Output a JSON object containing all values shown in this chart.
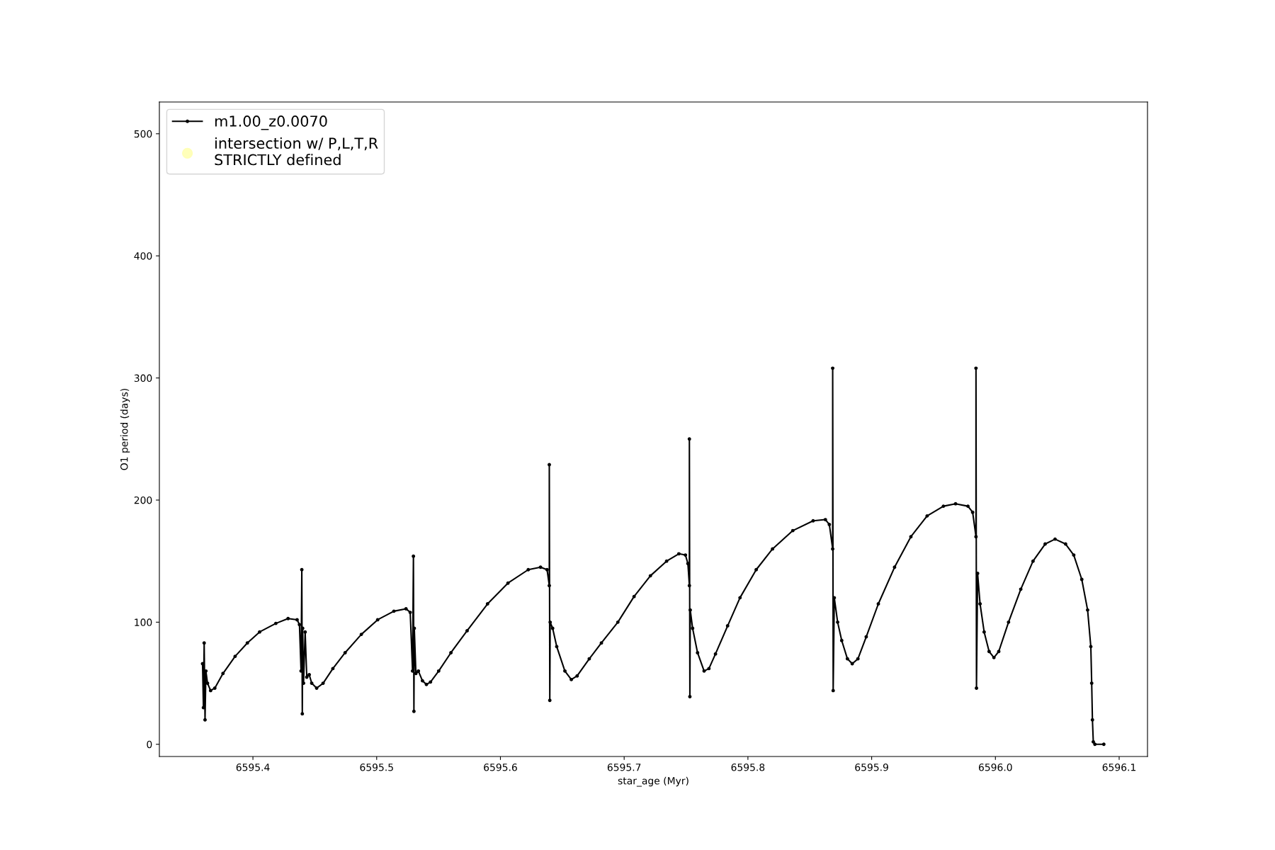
{
  "chart_data": {
    "type": "line",
    "xlabel": "star_age (Myr)",
    "ylabel": "O1 period (days)",
    "xlim": [
      6595.3244,
      6596.1229
    ],
    "ylim": [
      -10,
      526
    ],
    "xticks": [
      {
        "value": 6595.4,
        "label": "6595.4"
      },
      {
        "value": 6595.5,
        "label": "6595.5"
      },
      {
        "value": 6595.6,
        "label": "6595.6"
      },
      {
        "value": 6595.7,
        "label": "6595.7"
      },
      {
        "value": 6595.8,
        "label": "6595.8"
      },
      {
        "value": 6595.9,
        "label": "6595.9"
      },
      {
        "value": 6596.0,
        "label": "6596.0"
      },
      {
        "value": 6596.1,
        "label": "6596.1"
      }
    ],
    "yticks": [
      0,
      100,
      200,
      300,
      400,
      500
    ],
    "grid": false,
    "legend": "top left",
    "marker": "circle",
    "line_style": "solid",
    "series": [
      {
        "name": "m1.00_z0.0070",
        "color": "#000000",
        "x": [
          6595.3593,
          6595.36,
          6595.3606,
          6595.3613,
          6595.362,
          6595.3633,
          6595.3658,
          6595.3692,
          6595.3758,
          6595.3856,
          6595.3955,
          6595.4054,
          6595.4185,
          6595.4284,
          6595.4357,
          6595.4376,
          6595.4389,
          6595.4395,
          6595.4399,
          6595.4402,
          6595.4409,
          6595.4422,
          6595.4435,
          6595.4455,
          6595.4475,
          6595.4515,
          6595.4567,
          6595.4646,
          6595.4745,
          6595.4876,
          6595.5008,
          6595.5139,
          6595.5237,
          6595.5271,
          6595.529,
          6595.5297,
          6595.5301,
          6595.5304,
          6595.5317,
          6595.5337,
          6595.537,
          6595.5402,
          6595.5435,
          6595.5501,
          6595.56,
          6595.5731,
          6595.5896,
          6595.6061,
          6595.6225,
          6595.6324,
          6595.6377,
          6595.6395,
          6595.6395,
          6595.6399,
          6595.6402,
          6595.6422,
          6595.6455,
          6595.6521,
          6595.6573,
          6595.662,
          6595.6718,
          6595.6816,
          6595.6949,
          6595.708,
          6595.7212,
          6595.7343,
          6595.7442,
          6595.7495,
          6595.7515,
          6595.7527,
          6595.7527,
          6595.7531,
          6595.7534,
          6595.7553,
          6595.7593,
          6595.7646,
          6595.7685,
          6595.7738,
          6595.7836,
          6595.7936,
          6595.8067,
          6595.8199,
          6595.8363,
          6595.8527,
          6595.8626,
          6595.8658,
          6595.8685,
          6595.8685,
          6595.8689,
          6595.8698,
          6595.8725,
          6595.8758,
          6595.8804,
          6595.8843,
          6595.8889,
          6595.8956,
          6595.9054,
          6595.9185,
          6595.9317,
          6595.9448,
          6595.958,
          6595.9678,
          6595.9778,
          6595.9816,
          6595.9843,
          6595.9843,
          6595.9847,
          6595.9856,
          6595.9876,
          6595.9909,
          6595.9949,
          6595.9988,
          6596.0027,
          6596.0106,
          6596.0205,
          6596.0304,
          6596.0402,
          6596.0482,
          6596.0567,
          6596.0633,
          6596.0698,
          6596.0745,
          6596.0771,
          6596.0778,
          6596.0784,
          6596.0791,
          6596.0804,
          6596.0876
        ],
        "values": [
          66,
          30,
          83,
          20,
          60,
          50,
          44,
          46,
          58,
          72,
          83,
          92,
          99,
          103,
          102,
          98,
          60,
          143,
          25,
          95,
          50,
          92,
          55,
          57,
          50,
          46,
          50,
          62,
          75,
          90,
          102,
          109,
          111,
          108,
          60,
          154,
          27,
          95,
          58,
          60,
          52,
          49,
          51,
          60,
          75,
          93,
          115,
          132,
          143,
          145,
          143,
          130,
          229,
          36,
          100,
          95,
          80,
          60,
          53,
          56,
          70,
          83,
          100,
          121,
          138,
          150,
          156,
          155,
          148,
          130,
          250,
          39,
          110,
          95,
          75,
          60,
          62,
          74,
          97,
          120,
          143,
          160,
          175,
          183,
          184,
          180,
          160,
          308,
          44,
          120,
          100,
          85,
          70,
          66,
          70,
          88,
          115,
          145,
          170,
          187,
          195,
          197,
          195,
          190,
          170,
          308,
          46,
          140,
          115,
          92,
          76,
          71,
          76,
          100,
          127,
          150,
          164,
          168,
          164,
          155,
          135,
          110,
          80,
          50,
          20,
          2,
          0,
          0
        ]
      },
      {
        "name": "intersection w/ P,L,T,R\nSTRICTLY defined",
        "color": "#ffffb3",
        "type": "scatter"
      }
    ]
  }
}
